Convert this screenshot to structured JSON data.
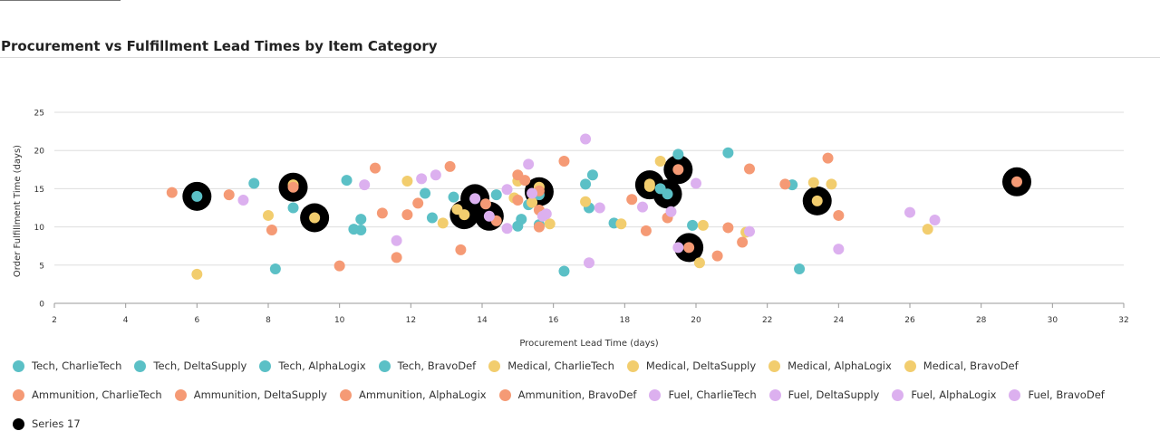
{
  "page": {
    "title": "Procurement vs Fulfillment Lead Times by Item Category"
  },
  "colors": {
    "Tech": "#5bc0c6",
    "Medical": "#f2cd6e",
    "Ammunition": "#f59a75",
    "Fuel": "#dcb0ef",
    "Series 17": "#000000",
    "grid": "#dddddd",
    "axis": "#999999"
  },
  "chart_data": {
    "type": "scatter",
    "title": "Procurement vs Fulfillment Lead Times by Item Category",
    "xlabel": "Procurement Lead Time (days)",
    "ylabel": "Order Fulfillment Time (days)",
    "xlim": [
      2,
      32
    ],
    "ylim": [
      0,
      25
    ],
    "xticks": [
      2,
      4,
      6,
      8,
      10,
      12,
      14,
      16,
      18,
      20,
      22,
      24,
      26,
      28,
      30,
      32
    ],
    "yticks": [
      0,
      5,
      10,
      15,
      20,
      25
    ],
    "grid": "horizontal",
    "legend_position": "bottom",
    "series": [
      {
        "name": "Tech, CharlieTech",
        "category": "Tech",
        "points": [
          [
            6.0,
            14.0
          ],
          [
            7.6,
            15.7
          ],
          [
            8.7,
            12.5
          ],
          [
            13.2,
            13.9
          ],
          [
            15.0,
            10.1
          ],
          [
            17.0,
            12.5
          ],
          [
            19.5,
            19.5
          ],
          [
            22.9,
            4.5
          ]
        ]
      },
      {
        "name": "Tech, DeltaSupply",
        "category": "Tech",
        "points": [
          [
            8.2,
            4.5
          ],
          [
            10.2,
            16.1
          ],
          [
            10.6,
            11.0
          ],
          [
            14.4,
            14.2
          ],
          [
            15.1,
            11.0
          ],
          [
            16.3,
            4.2
          ],
          [
            19.2,
            14.3
          ],
          [
            20.9,
            19.7
          ]
        ]
      },
      {
        "name": "Tech, AlphaLogix",
        "category": "Tech",
        "points": [
          [
            10.4,
            9.7
          ],
          [
            12.4,
            14.4
          ],
          [
            13.8,
            13.7
          ],
          [
            15.3,
            12.9
          ],
          [
            15.6,
            10.3
          ],
          [
            17.1,
            16.8
          ],
          [
            19.9,
            10.2
          ],
          [
            22.7,
            15.5
          ]
        ]
      },
      {
        "name": "Tech, BravoDef",
        "category": "Tech",
        "points": [
          [
            10.6,
            9.6
          ],
          [
            12.6,
            11.2
          ],
          [
            15.6,
            14.2
          ],
          [
            16.9,
            15.6
          ],
          [
            17.7,
            10.5
          ],
          [
            19.0,
            15.0
          ]
        ]
      },
      {
        "name": "Medical, CharlieTech",
        "category": "Medical",
        "points": [
          [
            6.0,
            3.8
          ],
          [
            8.0,
            11.5
          ],
          [
            11.9,
            16.0
          ],
          [
            13.3,
            12.3
          ],
          [
            15.0,
            16.0
          ],
          [
            16.9,
            13.3
          ],
          [
            19.0,
            18.6
          ],
          [
            23.3,
            15.8
          ]
        ]
      },
      {
        "name": "Medical, DeltaSupply",
        "category": "Medical",
        "points": [
          [
            8.7,
            15.5
          ],
          [
            9.3,
            11.2
          ],
          [
            12.9,
            10.5
          ],
          [
            13.5,
            11.6
          ],
          [
            15.4,
            13.2
          ],
          [
            15.9,
            10.4
          ],
          [
            18.7,
            15.6
          ],
          [
            21.4,
            9.3
          ]
        ]
      },
      {
        "name": "Medical, AlphaLogix",
        "category": "Medical",
        "points": [
          [
            14.9,
            13.8
          ],
          [
            17.9,
            10.4
          ],
          [
            20.2,
            10.2
          ],
          [
            23.4,
            13.4
          ],
          [
            26.5,
            9.7
          ]
        ]
      },
      {
        "name": "Medical, BravoDef",
        "category": "Medical",
        "points": [
          [
            15.6,
            15.2
          ],
          [
            18.7,
            15.3
          ],
          [
            20.1,
            5.3
          ],
          [
            23.8,
            15.6
          ]
        ]
      },
      {
        "name": "Ammunition, CharlieTech",
        "category": "Ammunition",
        "points": [
          [
            5.3,
            14.5
          ],
          [
            6.9,
            14.2
          ],
          [
            8.1,
            9.6
          ],
          [
            10.0,
            4.9
          ],
          [
            11.2,
            11.8
          ],
          [
            13.4,
            7.0
          ],
          [
            15.0,
            13.5
          ],
          [
            16.3,
            18.6
          ],
          [
            18.2,
            13.6
          ],
          [
            19.5,
            17.5
          ],
          [
            20.6,
            6.2
          ],
          [
            22.5,
            15.6
          ],
          [
            24.0,
            11.5
          ]
        ]
      },
      {
        "name": "Ammunition, DeltaSupply",
        "category": "Ammunition",
        "points": [
          [
            8.7,
            15.2
          ],
          [
            11.0,
            17.7
          ],
          [
            11.6,
            6.0
          ],
          [
            12.2,
            13.1
          ],
          [
            13.1,
            17.9
          ],
          [
            14.1,
            13.0
          ],
          [
            15.0,
            16.8
          ],
          [
            15.6,
            12.2
          ],
          [
            18.6,
            9.5
          ],
          [
            19.2,
            11.2
          ],
          [
            21.3,
            8.0
          ],
          [
            21.5,
            17.6
          ]
        ]
      },
      {
        "name": "Ammunition, AlphaLogix",
        "category": "Ammunition",
        "points": [
          [
            11.9,
            11.6
          ],
          [
            14.4,
            10.8
          ],
          [
            15.2,
            16.1
          ],
          [
            15.6,
            10.0
          ],
          [
            19.8,
            7.3
          ],
          [
            20.9,
            9.9
          ],
          [
            23.7,
            19.0
          ]
        ]
      },
      {
        "name": "Ammunition, BravoDef",
        "category": "Ammunition",
        "points": [
          [
            15.6,
            14.7
          ],
          [
            29.0,
            15.9
          ]
        ]
      },
      {
        "name": "Fuel, CharlieTech",
        "category": "Fuel",
        "points": [
          [
            7.3,
            13.5
          ],
          [
            11.6,
            8.2
          ],
          [
            12.3,
            16.3
          ],
          [
            14.7,
            14.9
          ],
          [
            16.9,
            21.5
          ],
          [
            18.5,
            12.6
          ],
          [
            19.5,
            7.3
          ],
          [
            24.0,
            7.1
          ]
        ]
      },
      {
        "name": "Fuel, DeltaSupply",
        "category": "Fuel",
        "points": [
          [
            10.7,
            15.5
          ],
          [
            12.7,
            16.8
          ],
          [
            14.7,
            9.8
          ],
          [
            15.3,
            18.2
          ],
          [
            15.7,
            11.4
          ],
          [
            17.0,
            5.3
          ],
          [
            19.3,
            12.0
          ],
          [
            21.5,
            9.4
          ],
          [
            26.0,
            11.9
          ]
        ]
      },
      {
        "name": "Fuel, AlphaLogix",
        "category": "Fuel",
        "points": [
          [
            14.2,
            11.4
          ],
          [
            15.4,
            14.4
          ],
          [
            17.3,
            12.5
          ],
          [
            20.0,
            15.7
          ],
          [
            26.7,
            10.9
          ]
        ]
      },
      {
        "name": "Fuel, BravoDef",
        "category": "Fuel",
        "points": [
          [
            13.8,
            13.7
          ],
          [
            15.8,
            11.7
          ]
        ]
      },
      {
        "name": "Series 17",
        "category": "Series 17",
        "emphasis": true,
        "points": [
          [
            6.0,
            14.0
          ],
          [
            8.7,
            15.2
          ],
          [
            9.3,
            11.2
          ],
          [
            13.5,
            11.6
          ],
          [
            13.8,
            13.7
          ],
          [
            14.2,
            11.4
          ],
          [
            15.6,
            14.6
          ],
          [
            18.7,
            15.5
          ],
          [
            19.2,
            14.3
          ],
          [
            19.5,
            17.5
          ],
          [
            19.8,
            7.3
          ],
          [
            23.4,
            13.4
          ],
          [
            29.0,
            15.9
          ]
        ]
      }
    ]
  }
}
